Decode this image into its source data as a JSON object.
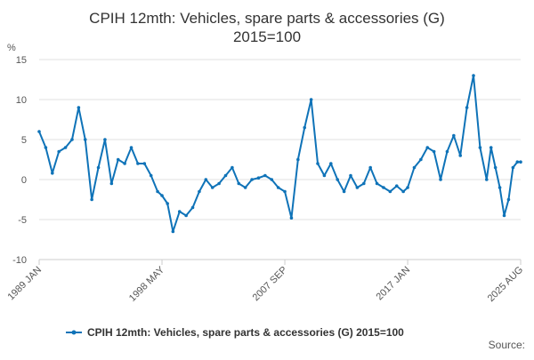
{
  "chart_data": {
    "type": "line",
    "title": "CPIH 12mth: Vehicles, spare parts & accessories (G)",
    "subtitle": "2015=100",
    "ylabel": "%",
    "xlabel": "",
    "ylim": [
      -10,
      15
    ],
    "yticks": [
      15,
      10,
      5,
      0,
      -5,
      -10
    ],
    "x_start": "1989 JAN",
    "x_end": "2025 AUG",
    "x_tick_labels": [
      "1989 JAN",
      "1998 MAY",
      "2007 SEP",
      "2017 JAN",
      "2025 AUG"
    ],
    "grid": true,
    "legend_position": "bottom",
    "series": [
      {
        "name": "CPIH 12mth: Vehicles, spare parts & accessories (G) 2015=100",
        "color": "#0f73b8",
        "points": [
          [
            "1989 JAN",
            6.0
          ],
          [
            "1989 JUL",
            4.0
          ],
          [
            "1990 JAN",
            0.8
          ],
          [
            "1990 JUL",
            3.5
          ],
          [
            "1991 JAN",
            4.0
          ],
          [
            "1991 JUL",
            5.0
          ],
          [
            "1992 JAN",
            9.0
          ],
          [
            "1992 JUL",
            5.0
          ],
          [
            "1993 JAN",
            -2.5
          ],
          [
            "1993 JUL",
            1.5
          ],
          [
            "1994 JAN",
            5.0
          ],
          [
            "1994 JUL",
            -0.5
          ],
          [
            "1995 JAN",
            2.5
          ],
          [
            "1995 JUL",
            2.0
          ],
          [
            "1996 JAN",
            4.0
          ],
          [
            "1996 JUL",
            2.0
          ],
          [
            "1997 JAN",
            2.0
          ],
          [
            "1997 JUL",
            0.5
          ],
          [
            "1998 JAN",
            -1.5
          ],
          [
            "1998 MAY",
            -2.0
          ],
          [
            "1998 OCT",
            -3.0
          ],
          [
            "1999 MAR",
            -6.5
          ],
          [
            "1999 SEP",
            -4.0
          ],
          [
            "2000 MAR",
            -4.5
          ],
          [
            "2000 SEP",
            -3.5
          ],
          [
            "2001 MAR",
            -1.5
          ],
          [
            "2001 SEP",
            0.0
          ],
          [
            "2002 MAR",
            -1.0
          ],
          [
            "2002 SEP",
            -0.5
          ],
          [
            "2003 MAR",
            0.5
          ],
          [
            "2003 SEP",
            1.5
          ],
          [
            "2004 MAR",
            -0.5
          ],
          [
            "2004 SEP",
            -1.0
          ],
          [
            "2005 MAR",
            0.0
          ],
          [
            "2005 SEP",
            0.2
          ],
          [
            "2006 MAR",
            0.5
          ],
          [
            "2006 SEP",
            0.0
          ],
          [
            "2007 MAR",
            -1.0
          ],
          [
            "2007 SEP",
            -1.5
          ],
          [
            "2008 MAR",
            -4.8
          ],
          [
            "2008 SEP",
            2.5
          ],
          [
            "2009 MAR",
            6.5
          ],
          [
            "2009 SEP",
            10.0
          ],
          [
            "2010 MAR",
            2.0
          ],
          [
            "2010 SEP",
            0.5
          ],
          [
            "2011 MAR",
            2.0
          ],
          [
            "2011 SEP",
            0.0
          ],
          [
            "2012 MAR",
            -1.5
          ],
          [
            "2012 SEP",
            0.5
          ],
          [
            "2013 MAR",
            -1.0
          ],
          [
            "2013 SEP",
            -0.5
          ],
          [
            "2014 MAR",
            1.5
          ],
          [
            "2014 SEP",
            -0.5
          ],
          [
            "2015 MAR",
            -1.0
          ],
          [
            "2015 SEP",
            -1.5
          ],
          [
            "2016 MAR",
            -0.8
          ],
          [
            "2016 SEP",
            -1.5
          ],
          [
            "2017 JAN",
            -1.0
          ],
          [
            "2017 JUL",
            1.5
          ],
          [
            "2018 JAN",
            2.5
          ],
          [
            "2018 JUL",
            4.0
          ],
          [
            "2019 JAN",
            3.5
          ],
          [
            "2019 JUL",
            0.0
          ],
          [
            "2020 JAN",
            3.5
          ],
          [
            "2020 JUL",
            5.5
          ],
          [
            "2021 JAN",
            3.0
          ],
          [
            "2021 JUL",
            9.0
          ],
          [
            "2022 JAN",
            13.0
          ],
          [
            "2022 JUL",
            4.0
          ],
          [
            "2023 JAN",
            0.0
          ],
          [
            "2023 MAY",
            4.0
          ],
          [
            "2023 SEP",
            1.5
          ],
          [
            "2024 JAN",
            -1.0
          ],
          [
            "2024 MAY",
            -4.5
          ],
          [
            "2024 SEP",
            -2.5
          ],
          [
            "2025 JAN",
            1.5
          ],
          [
            "2025 MAY",
            2.2
          ],
          [
            "2025 AUG",
            2.2
          ]
        ]
      }
    ]
  },
  "legend": {
    "label": "CPIH 12mth: Vehicles, spare parts & accessories (G) 2015=100"
  },
  "source_label": "Source:"
}
